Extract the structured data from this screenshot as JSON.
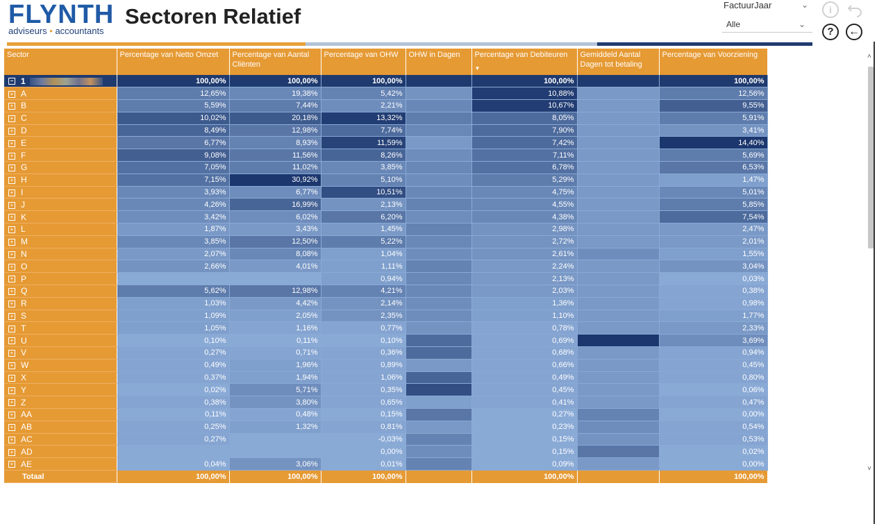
{
  "logo": {
    "main": "FLYNTH",
    "sub_left": "adviseurs",
    "sub_dot": "•",
    "sub_right": "accountants"
  },
  "page_title": "Sectoren Relatief",
  "filter": {
    "label": "FactuurJaar",
    "value": "Alle"
  },
  "icons": {
    "info": "i",
    "undo": "undo-arrow",
    "help": "?",
    "back": "←"
  },
  "colors": {
    "header": "#e69a34",
    "total_row": "#1f3a6e",
    "dark": "#1f3a6e",
    "light": "#8aaad6"
  },
  "table": {
    "columns": [
      "Sector",
      "Percentage van Netto Omzet",
      "Percentage van Aantal Cliënten",
      "Percentage van OHW",
      "OHW in Dagen",
      "Percentage van Debiteuren",
      "Gemiddeld Aantal Dagen tot betaling",
      "Percentage van Voorziening"
    ],
    "total_row": {
      "sector": "1",
      "values": [
        "100,00%",
        "100,00%",
        "100,00%",
        "",
        "100,00%",
        "",
        "100,00%"
      ]
    },
    "rows": [
      {
        "sector": "A",
        "values": [
          "12,65%",
          "19,38%",
          "5,42%",
          "",
          "10,88%",
          "",
          "12,56%"
        ]
      },
      {
        "sector": "B",
        "values": [
          "5,59%",
          "7,44%",
          "2,21%",
          "",
          "10,67%",
          "",
          "9,55%"
        ]
      },
      {
        "sector": "C",
        "values": [
          "10,02%",
          "20,18%",
          "13,32%",
          "",
          "8,05%",
          "",
          "5,91%"
        ]
      },
      {
        "sector": "D",
        "values": [
          "8,49%",
          "12,98%",
          "7,74%",
          "",
          "7,90%",
          "",
          "3,41%"
        ]
      },
      {
        "sector": "E",
        "values": [
          "6,77%",
          "8,93%",
          "11,59%",
          "",
          "7,42%",
          "",
          "14,40%"
        ]
      },
      {
        "sector": "F",
        "values": [
          "9,08%",
          "11,56%",
          "8,26%",
          "",
          "7,11%",
          "",
          "5,69%"
        ]
      },
      {
        "sector": "G",
        "values": [
          "7,05%",
          "11,02%",
          "3,85%",
          "",
          "6,78%",
          "",
          "6,53%"
        ]
      },
      {
        "sector": "H",
        "values": [
          "7,15%",
          "30,92%",
          "5,10%",
          "",
          "5,29%",
          "",
          "1,47%"
        ]
      },
      {
        "sector": "I",
        "values": [
          "3,93%",
          "6,77%",
          "10,51%",
          "",
          "4,75%",
          "",
          "5,01%"
        ]
      },
      {
        "sector": "J",
        "values": [
          "4,26%",
          "16,99%",
          "2,13%",
          "",
          "4,55%",
          "",
          "5,85%"
        ]
      },
      {
        "sector": "K",
        "values": [
          "3,42%",
          "6,02%",
          "6,20%",
          "",
          "4,38%",
          "",
          "7,54%"
        ]
      },
      {
        "sector": "L",
        "values": [
          "1,87%",
          "3,43%",
          "1,45%",
          "",
          "2,98%",
          "",
          "2,47%"
        ]
      },
      {
        "sector": "M",
        "values": [
          "3,85%",
          "12,50%",
          "5,22%",
          "",
          "2,72%",
          "",
          "2,01%"
        ]
      },
      {
        "sector": "N",
        "values": [
          "2,07%",
          "8,08%",
          "1,04%",
          "",
          "2,61%",
          "",
          "1,55%"
        ]
      },
      {
        "sector": "O",
        "values": [
          "2,66%",
          "4,01%",
          "1,11%",
          "",
          "2,24%",
          "",
          "3,04%"
        ]
      },
      {
        "sector": "P",
        "values": [
          "",
          "",
          "0,94%",
          "",
          "2,13%",
          "",
          "0,03%"
        ]
      },
      {
        "sector": "Q",
        "values": [
          "5,62%",
          "12,98%",
          "4,21%",
          "",
          "2,03%",
          "",
          "0,38%"
        ]
      },
      {
        "sector": "R",
        "values": [
          "1,03%",
          "4,42%",
          "2,14%",
          "",
          "1,36%",
          "",
          "0,98%"
        ]
      },
      {
        "sector": "S",
        "values": [
          "1,09%",
          "2,05%",
          "2,35%",
          "",
          "1,10%",
          "",
          "1,77%"
        ]
      },
      {
        "sector": "T",
        "values": [
          "1,05%",
          "1,16%",
          "0,77%",
          "",
          "0,78%",
          "",
          "2,33%"
        ]
      },
      {
        "sector": "U",
        "values": [
          "0,10%",
          "0,11%",
          "0,10%",
          "",
          "0,69%",
          "",
          "3,69%"
        ]
      },
      {
        "sector": "V",
        "values": [
          "0,27%",
          "0,71%",
          "0,36%",
          "",
          "0,68%",
          "",
          "0,94%"
        ]
      },
      {
        "sector": "W",
        "values": [
          "0,49%",
          "1,96%",
          "0,89%",
          "",
          "0,66%",
          "",
          "0,45%"
        ]
      },
      {
        "sector": "X",
        "values": [
          "0,37%",
          "1,94%",
          "1,06%",
          "",
          "0,49%",
          "",
          "0,80%"
        ]
      },
      {
        "sector": "Y",
        "values": [
          "0,02%",
          "5,71%",
          "0,35%",
          "",
          "0,45%",
          "",
          "0,06%"
        ]
      },
      {
        "sector": "Z",
        "values": [
          "0,38%",
          "3,80%",
          "0,65%",
          "",
          "0,41%",
          "",
          "0,47%"
        ]
      },
      {
        "sector": "AA",
        "values": [
          "0,11%",
          "0,48%",
          "0,15%",
          "",
          "0,27%",
          "",
          "0,00%"
        ]
      },
      {
        "sector": "AB",
        "values": [
          "0,25%",
          "1,32%",
          "0,81%",
          "",
          "0,23%",
          "",
          "0,54%"
        ]
      },
      {
        "sector": "AC",
        "values": [
          "0,27%",
          "",
          "-0,03%",
          "",
          "0,15%",
          "",
          "0,53%"
        ]
      },
      {
        "sector": "AD",
        "values": [
          "",
          "",
          "0,00%",
          "",
          "0,15%",
          "",
          "0,02%"
        ]
      },
      {
        "sector": "AE",
        "values": [
          "0,04%",
          "3,06%",
          "0,01%",
          "",
          "0,09%",
          "",
          "0,00%"
        ]
      }
    ],
    "intensity": [
      [
        0.4,
        0.3,
        0.35,
        0.2,
        0.95,
        0.15,
        0.4
      ],
      [
        0.4,
        0.4,
        0.25,
        0.3,
        0.95,
        0.15,
        0.65
      ],
      [
        0.7,
        0.7,
        0.95,
        0.4,
        0.55,
        0.15,
        0.4
      ],
      [
        0.6,
        0.45,
        0.55,
        0.3,
        0.55,
        0.15,
        0.2
      ],
      [
        0.45,
        0.35,
        0.9,
        0.15,
        0.55,
        0.15,
        1.0
      ],
      [
        0.65,
        0.45,
        0.6,
        0.25,
        0.5,
        0.15,
        0.4
      ],
      [
        0.5,
        0.4,
        0.3,
        0.3,
        0.5,
        0.15,
        0.45
      ],
      [
        0.5,
        1.0,
        0.35,
        0.25,
        0.4,
        0.15,
        0.1
      ],
      [
        0.3,
        0.25,
        0.8,
        0.3,
        0.3,
        0.15,
        0.3
      ],
      [
        0.3,
        0.6,
        0.2,
        0.35,
        0.3,
        0.15,
        0.4
      ],
      [
        0.25,
        0.25,
        0.45,
        0.25,
        0.3,
        0.15,
        0.55
      ],
      [
        0.15,
        0.15,
        0.15,
        0.35,
        0.2,
        0.15,
        0.15
      ],
      [
        0.3,
        0.45,
        0.4,
        0.3,
        0.2,
        0.15,
        0.15
      ],
      [
        0.15,
        0.3,
        0.1,
        0.25,
        0.2,
        0.25,
        0.1
      ],
      [
        0.2,
        0.15,
        0.1,
        0.35,
        0.15,
        0.15,
        0.2
      ],
      [
        0.0,
        0.0,
        0.1,
        0.3,
        0.15,
        0.15,
        0.0
      ],
      [
        0.4,
        0.45,
        0.35,
        0.3,
        0.15,
        0.15,
        0.05
      ],
      [
        0.1,
        0.15,
        0.2,
        0.25,
        0.1,
        0.15,
        0.05
      ],
      [
        0.1,
        0.1,
        0.2,
        0.25,
        0.1,
        0.15,
        0.1
      ],
      [
        0.1,
        0.05,
        0.05,
        0.2,
        0.05,
        0.15,
        0.15
      ],
      [
        0.0,
        0.0,
        0.0,
        0.55,
        0.05,
        1.0,
        0.25
      ],
      [
        0.05,
        0.05,
        0.05,
        0.55,
        0.05,
        0.15,
        0.05
      ],
      [
        0.05,
        0.1,
        0.05,
        0.15,
        0.05,
        0.15,
        0.05
      ],
      [
        0.05,
        0.1,
        0.05,
        0.6,
        0.05,
        0.15,
        0.05
      ],
      [
        0.0,
        0.25,
        0.05,
        0.8,
        0.05,
        0.15,
        0.0
      ],
      [
        0.05,
        0.2,
        0.05,
        0.1,
        0.05,
        0.15,
        0.05
      ],
      [
        0.0,
        0.05,
        0.0,
        0.45,
        0.0,
        0.35,
        0.0
      ],
      [
        0.05,
        0.1,
        0.05,
        0.15,
        0.0,
        0.25,
        0.05
      ],
      [
        0.05,
        0.0,
        0.0,
        0.35,
        0.0,
        0.2,
        0.05
      ],
      [
        0.0,
        0.0,
        0.0,
        0.25,
        0.0,
        0.45,
        0.0
      ],
      [
        0.0,
        0.2,
        0.0,
        0.35,
        0.0,
        0.15,
        0.0
      ]
    ],
    "footer": {
      "label": "Totaal",
      "values": [
        "100,00%",
        "100,00%",
        "100,00%",
        "",
        "100,00%",
        "",
        "100,00%"
      ]
    }
  }
}
